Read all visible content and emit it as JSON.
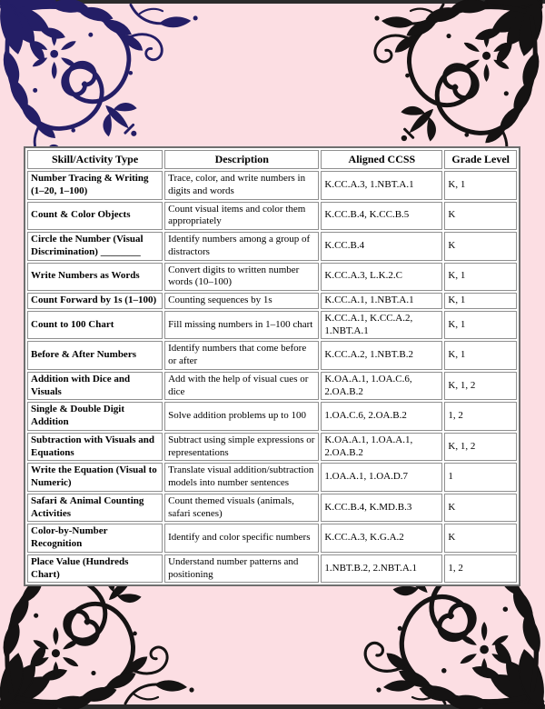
{
  "colors": {
    "background": "#fcdee3",
    "edge_strip": "#2b2b2b",
    "ornament_navy": "#241e66",
    "ornament_black": "#151313",
    "table_border": "#6f6f6f",
    "cell_border": "#8f8f8f",
    "cell_background": "#ffffff",
    "text": "#000000"
  },
  "ornaments": {
    "top_left": "damask-flourish-navy",
    "top_right": "damask-flourish-black",
    "bottom_left": "damask-flourish-black",
    "bottom_right": "damask-flourish-black"
  },
  "table": {
    "headers": [
      "Skill/Activity Type",
      "Description",
      "Aligned CCSS",
      "Grade Level"
    ],
    "rows": [
      {
        "skill": "Number Tracing & Writing (1–20, 1–100)",
        "description": "Trace, color, and write numbers in digits and words",
        "ccss": "K.CC.A.3, 1.NBT.A.1",
        "grade": "K, 1"
      },
      {
        "skill": "Count & Color Objects",
        "description": "Count visual items and color them appropriately",
        "ccss": "K.CC.B.4, K.CC.B.5",
        "grade": "K"
      },
      {
        "skill": "Circle the Number (Visual Discrimination)",
        "blank": "________",
        "description": "Identify numbers among a group of distractors",
        "ccss": "K.CC.B.4",
        "grade": "K"
      },
      {
        "skill": "Write Numbers as Words",
        "description": "Convert digits to written number words (10–100)",
        "ccss": "K.CC.A.3, L.K.2.C",
        "grade": "K, 1"
      },
      {
        "skill": "Count Forward by 1s (1–100)",
        "description": "Counting sequences by 1s",
        "ccss": "K.CC.A.1, 1.NBT.A.1",
        "grade": "K, 1"
      },
      {
        "skill": "Count to 100 Chart",
        "description": "Fill missing numbers in 1–100 chart",
        "ccss": "K.CC.A.1, K.CC.A.2, 1.NBT.A.1",
        "grade": "K, 1"
      },
      {
        "skill": "Before & After Numbers",
        "description": "Identify numbers that come before or after",
        "ccss": "K.CC.A.2, 1.NBT.B.2",
        "grade": "K, 1"
      },
      {
        "skill": "Addition with Dice and Visuals",
        "description": "Add with the help of visual cues or dice",
        "ccss": "K.OA.A.1, 1.OA.C.6, 2.OA.B.2",
        "grade": "K, 1, 2"
      },
      {
        "skill": "Single & Double Digit Addition",
        "description": "Solve addition problems up to 100",
        "ccss": "1.OA.C.6, 2.OA.B.2",
        "grade": "1, 2"
      },
      {
        "skill": "Subtraction with Visuals and Equations",
        "description": "Subtract using simple expressions or representations",
        "ccss": "K.OA.A.1, 1.OA.A.1, 2.OA.B.2",
        "grade": "K, 1, 2"
      },
      {
        "skill": "Write the Equation (Visual to Numeric)",
        "description": "Translate visual addition/subtraction models into number sentences",
        "ccss": "1.OA.A.1, 1.OA.D.7",
        "grade": "1"
      },
      {
        "skill": "Safari & Animal Counting Activities",
        "description": "Count themed visuals (animals, safari scenes)",
        "ccss": "K.CC.B.4, K.MD.B.3",
        "grade": "K"
      },
      {
        "skill": "Color-by-Number Recognition",
        "description": "Identify and color specific numbers",
        "ccss": "K.CC.A.3, K.G.A.2",
        "grade": "K"
      },
      {
        "skill": "Place Value (Hundreds Chart)",
        "description": "Understand number patterns and positioning",
        "ccss": "1.NBT.B.2, 2.NBT.A.1",
        "grade": "1, 2"
      }
    ]
  }
}
